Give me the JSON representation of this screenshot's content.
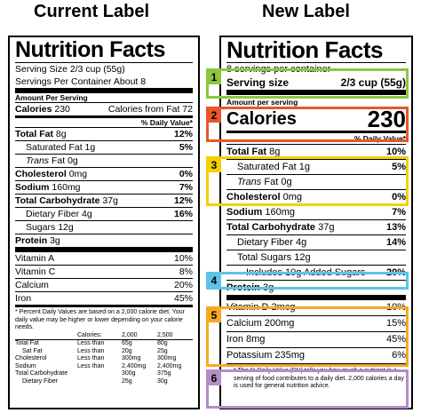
{
  "left": {
    "heading": "Current Label",
    "title": "Nutrition Facts",
    "serving_size": "Serving Size 2/3 cup (55g)",
    "servings_per": "Servings Per Container About 8",
    "amount_per": "Amount Per Serving",
    "calories_label": "Calories",
    "calories_value": "230",
    "calories_fat": "Calories from Fat 72",
    "dv_header": "% Daily Value*",
    "nutrients": [
      {
        "name": "Total Fat",
        "amt": "8g",
        "dv": "12%",
        "bold": true
      },
      {
        "name": "Saturated Fat",
        "amt": "1g",
        "dv": "5%",
        "bold": false
      },
      {
        "name": "Trans",
        "amt": "Fat 0g",
        "dv": "",
        "bold": false
      },
      {
        "name": "Cholesterol",
        "amt": "0mg",
        "dv": "0%",
        "bold": true
      },
      {
        "name": "Sodium",
        "amt": "160mg",
        "dv": "7%",
        "bold": true
      },
      {
        "name": "Total Carbohydrate",
        "amt": "37g",
        "dv": "12%",
        "bold": true
      },
      {
        "name": "Dietary Fiber",
        "amt": "4g",
        "dv": "16%",
        "bold": false
      },
      {
        "name": "Sugars",
        "amt": "12g",
        "dv": "",
        "bold": false
      },
      {
        "name": "Protein",
        "amt": "3g",
        "dv": "",
        "bold": true
      }
    ],
    "vitamins": [
      {
        "name": "Vitamin A",
        "dv": "10%"
      },
      {
        "name": "Vitamin C",
        "dv": "8%"
      },
      {
        "name": "Calcium",
        "dv": "20%"
      },
      {
        "name": "Iron",
        "dv": "45%"
      }
    ],
    "footnote": "* Percent Daily Values are based on a 2,000 calorie diet. Your daily value may be higher or lower depending on your calorie needs.",
    "table_header": [
      "",
      "Calories:",
      "2,000",
      "2,500"
    ],
    "table_rows": [
      [
        "Total Fat",
        "Less than",
        "65g",
        "80g"
      ],
      [
        "Sat Fat",
        "Less than",
        "20g",
        "25g"
      ],
      [
        "Cholesterol",
        "Less than",
        "300mg",
        "300mg"
      ],
      [
        "Sodium",
        "Less than",
        "2,400mg",
        "2,400mg"
      ],
      [
        "Total Carbohydrate",
        "",
        "300g",
        "375g"
      ],
      [
        "Dietary Fiber",
        "",
        "25g",
        "30g"
      ]
    ]
  },
  "right": {
    "heading": "New Label",
    "title": "Nutrition Facts",
    "servings_per": "8 servings per container",
    "serving_size_label": "Serving size",
    "serving_size_value": "2/3 cup (55g)",
    "amount_per": "Amount per serving",
    "calories_label": "Calories",
    "calories_value": "230",
    "dv_header": "% Daily Value*",
    "nutrients": [
      {
        "name": "Total Fat",
        "amt": "8g",
        "dv": "10%"
      },
      {
        "name": "Saturated Fat",
        "amt": "1g",
        "dv": "5%"
      },
      {
        "name": "Trans",
        "amt": "Fat 0g",
        "dv": ""
      },
      {
        "name": "Cholesterol",
        "amt": "0mg",
        "dv": "0%"
      },
      {
        "name": "Sodium",
        "amt": "160mg",
        "dv": "7%"
      },
      {
        "name": "Total Carbohydrate",
        "amt": "37g",
        "dv": "13%"
      },
      {
        "name": "Dietary Fiber",
        "amt": "4g",
        "dv": "14%"
      },
      {
        "name": "Total Sugars",
        "amt": "12g",
        "dv": ""
      },
      {
        "name": "Includes 10g Added Sugars",
        "amt": "",
        "dv": "20%"
      },
      {
        "name": "Protein",
        "amt": "3g",
        "dv": ""
      }
    ],
    "vitamins": [
      {
        "name": "Vitamin D 2mcg",
        "dv": "10%"
      },
      {
        "name": "Calcium 200mg",
        "dv": "15%"
      },
      {
        "name": "Iron 8mg",
        "dv": "45%"
      },
      {
        "name": "Potassium 235mg",
        "dv": "6%"
      }
    ],
    "footnote": "* The % Daily Value (DV) tells you how much a nutrient in a serving of food contributes to a daily diet. 2,000 calories a day is used for general nutrition advice."
  },
  "callouts": [
    {
      "n": "1",
      "color": "#8cc63f"
    },
    {
      "n": "2",
      "color": "#e8562a"
    },
    {
      "n": "3",
      "color": "#f5d000"
    },
    {
      "n": "4",
      "color": "#5ec3e8"
    },
    {
      "n": "5",
      "color": "#f7a823"
    },
    {
      "n": "6",
      "color": "#b58bc8"
    }
  ]
}
